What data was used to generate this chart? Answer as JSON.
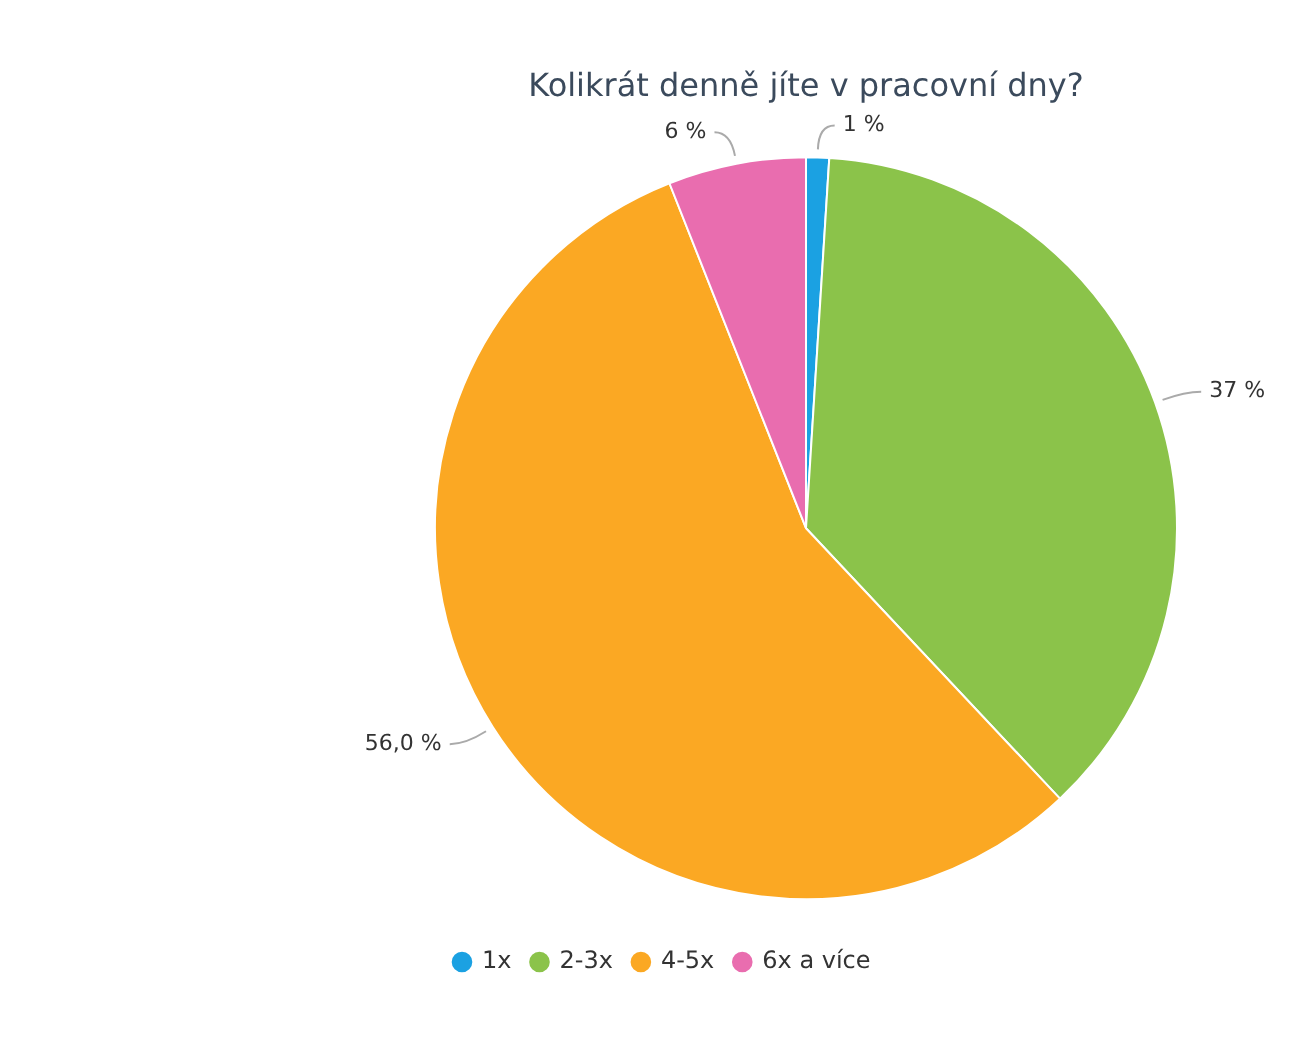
{
  "chart_data": {
    "type": "pie",
    "title": "Kolikrát denně jíte v pracovní dny?",
    "categories": [
      "1x",
      "2-3x",
      "4-5x",
      "6x a více"
    ],
    "values": [
      1,
      37,
      56,
      6
    ],
    "colors": [
      "#1ba1e2",
      "#8bc34a",
      "#fba823",
      "#e96daf"
    ],
    "value_labels": [
      "1 %",
      "37 %",
      "56,0 %",
      "6 %"
    ],
    "legend": "bottom left"
  }
}
